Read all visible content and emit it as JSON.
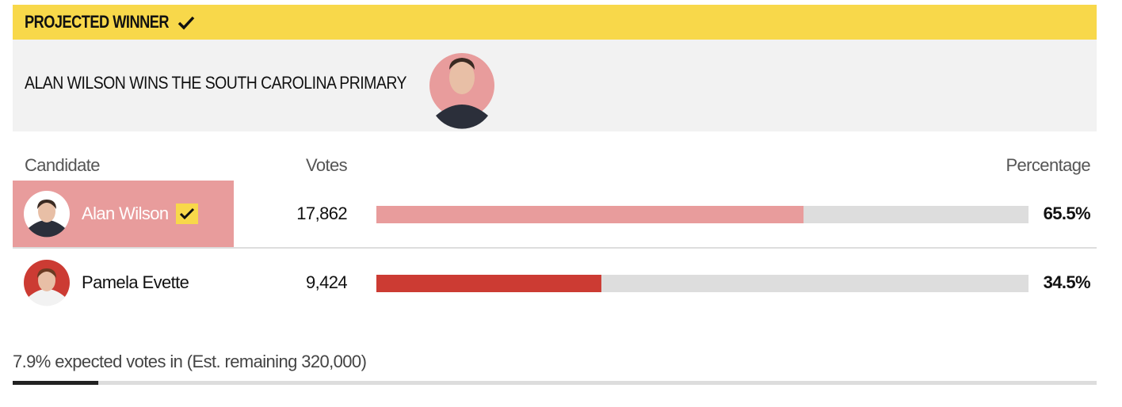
{
  "banner": {
    "label": "PROJECTED WINNER"
  },
  "headline": "ALAN WILSON WINS THE SOUTH CAROLINA PRIMARY",
  "table": {
    "columns": [
      "Candidate",
      "Votes",
      "Percentage"
    ],
    "candidates": [
      {
        "name": "Alan Wilson",
        "votes": "17,862",
        "percentage": {
          "value": 65.5,
          "label": "65.5%"
        },
        "winner": true,
        "color": "#e89c9c"
      },
      {
        "name": "Pamela Evette",
        "votes": "9,424",
        "percentage": {
          "value": 34.5,
          "label": "34.5%"
        },
        "winner": false,
        "color": "#cc3b33"
      }
    ]
  },
  "expected_votes": {
    "value": 7.9,
    "label": "7.9% expected votes in (Est. remaining 320,000)"
  }
}
